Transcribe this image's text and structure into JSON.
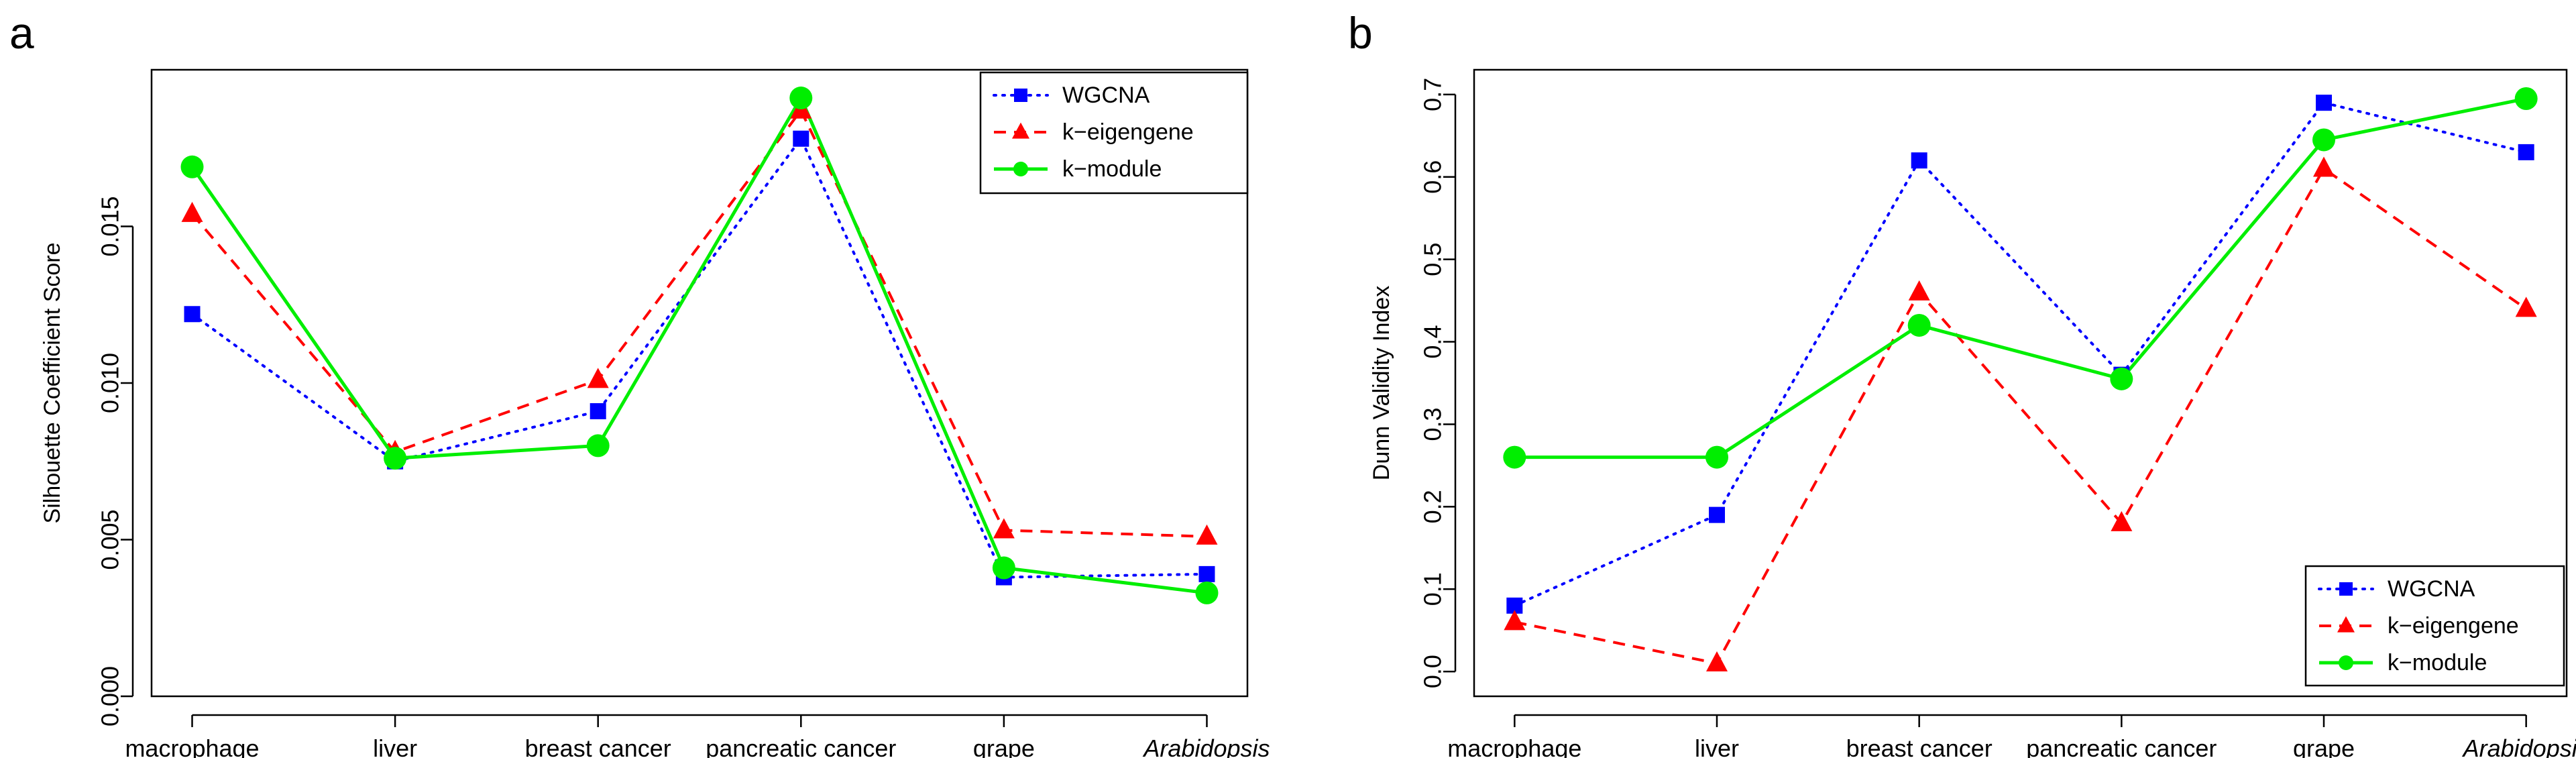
{
  "chart_data": [
    {
      "type": "line",
      "panel_label": "a",
      "title": "",
      "xlabel": "",
      "ylabel": "Silhouette Coefficient Score",
      "categories": [
        "macrophage",
        "liver",
        "breast cancer",
        "pancreatic cancer",
        "grape",
        "Arabidopsis"
      ],
      "italic_categories": [
        "Arabidopsis"
      ],
      "ylim": [
        0,
        0.02
      ],
      "yticks": [
        0.0,
        0.005,
        0.01,
        0.015
      ],
      "ytick_labels": [
        "0.000",
        "0.005",
        "0.010",
        "0.015"
      ],
      "grid": false,
      "legend_position": "top-right",
      "series": [
        {
          "name": "WGCNA",
          "color": "#0000ff",
          "line": "dotted",
          "marker": "square",
          "values": [
            0.0122,
            0.0075,
            0.0091,
            0.0178,
            0.0038,
            0.0039
          ]
        },
        {
          "name": "k−eigengene",
          "color": "#ff0000",
          "line": "dashed",
          "marker": "triangle",
          "values": [
            0.0154,
            0.0078,
            0.0101,
            0.0187,
            0.0053,
            0.0051
          ]
        },
        {
          "name": "k−module",
          "color": "#00ee00",
          "line": "solid",
          "marker": "circle",
          "values": [
            0.0169,
            0.0076,
            0.008,
            0.0191,
            0.0041,
            0.0033
          ]
        }
      ]
    },
    {
      "type": "line",
      "panel_label": "b",
      "title": "",
      "xlabel": "",
      "ylabel": "Dunn Validity Index",
      "categories": [
        "macrophage",
        "liver",
        "breast cancer",
        "pancreatic cancer",
        "grape",
        "Arabidopsis"
      ],
      "italic_categories": [
        "Arabidopsis"
      ],
      "ylim": [
        -0.03,
        0.73
      ],
      "yticks": [
        0.0,
        0.1,
        0.2,
        0.3,
        0.4,
        0.5,
        0.6,
        0.7
      ],
      "ytick_labels": [
        "0.0",
        "0.1",
        "0.2",
        "0.3",
        "0.4",
        "0.5",
        "0.6",
        "0.7"
      ],
      "grid": false,
      "legend_position": "bottom-right",
      "series": [
        {
          "name": "WGCNA",
          "color": "#0000ff",
          "line": "dotted",
          "marker": "square",
          "values": [
            0.08,
            0.19,
            0.62,
            0.36,
            0.69,
            0.63
          ]
        },
        {
          "name": "k−eigengene",
          "color": "#ff0000",
          "line": "dashed",
          "marker": "triangle",
          "values": [
            0.06,
            0.01,
            0.46,
            0.18,
            0.61,
            0.44
          ]
        },
        {
          "name": "k−module",
          "color": "#00ee00",
          "line": "solid",
          "marker": "circle",
          "values": [
            0.26,
            0.26,
            0.42,
            0.355,
            0.645,
            0.695
          ]
        }
      ]
    }
  ]
}
